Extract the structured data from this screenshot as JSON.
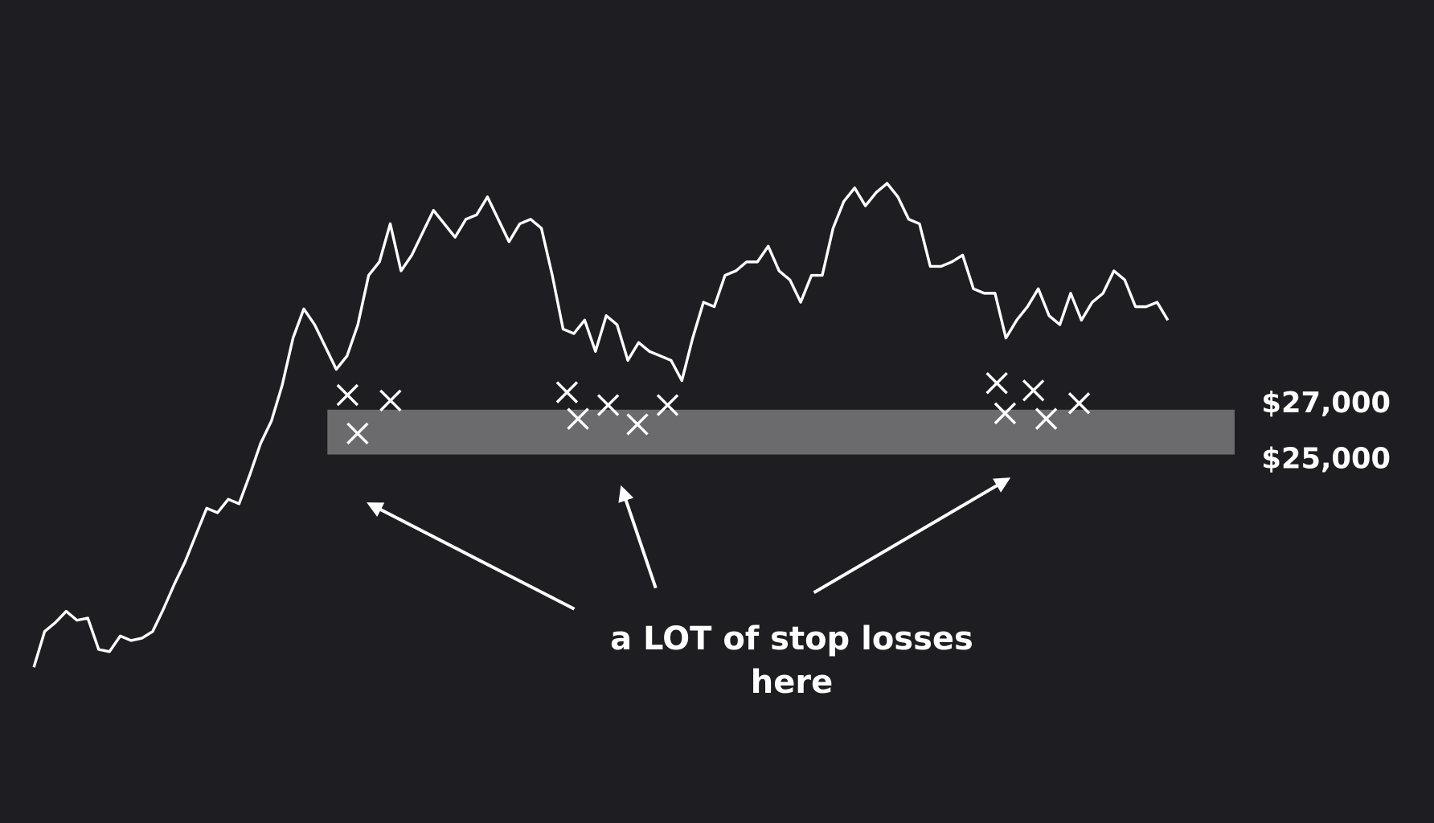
{
  "chart_data": {
    "type": "line",
    "color": "#ffffff",
    "values": [
      15500,
      17100,
      17500,
      18000,
      17600,
      17700,
      16300,
      16200,
      16900,
      16700,
      16800,
      17100,
      18100,
      19200,
      20200,
      21400,
      22600,
      22400,
      23000,
      22800,
      24100,
      25500,
      26500,
      28100,
      30200,
      31500,
      30800,
      29800,
      28800,
      29400,
      30800,
      33000,
      33600,
      35300,
      33200,
      33900,
      34900,
      35900,
      35300,
      34700,
      35500,
      35700,
      36500,
      35500,
      34500,
      35300,
      35500,
      35100,
      33000,
      30600,
      30400,
      31000,
      29600,
      31200,
      30800,
      29200,
      30000,
      29600,
      29400,
      29200,
      28300,
      30200,
      31800,
      31600,
      33000,
      33200,
      33600,
      33600,
      34300,
      33200,
      32800,
      31800,
      33000,
      33000,
      35100,
      36300,
      36900,
      36100,
      36700,
      37100,
      36500,
      35500,
      35300,
      33400,
      33400,
      33600,
      33900,
      32400,
      32200,
      32200,
      30200,
      31000,
      31600,
      32400,
      31200,
      30800,
      32200,
      31000,
      31800,
      32200,
      33200,
      32800,
      31600,
      31600,
      31800,
      31000
    ],
    "ylim": [
      8550,
      45290
    ],
    "yticks": [
      {
        "value": 27000,
        "label": "$27,000"
      },
      {
        "value": 25000,
        "label": "$25,000"
      }
    ],
    "annotation": "a LOT of stop losses here"
  }
}
